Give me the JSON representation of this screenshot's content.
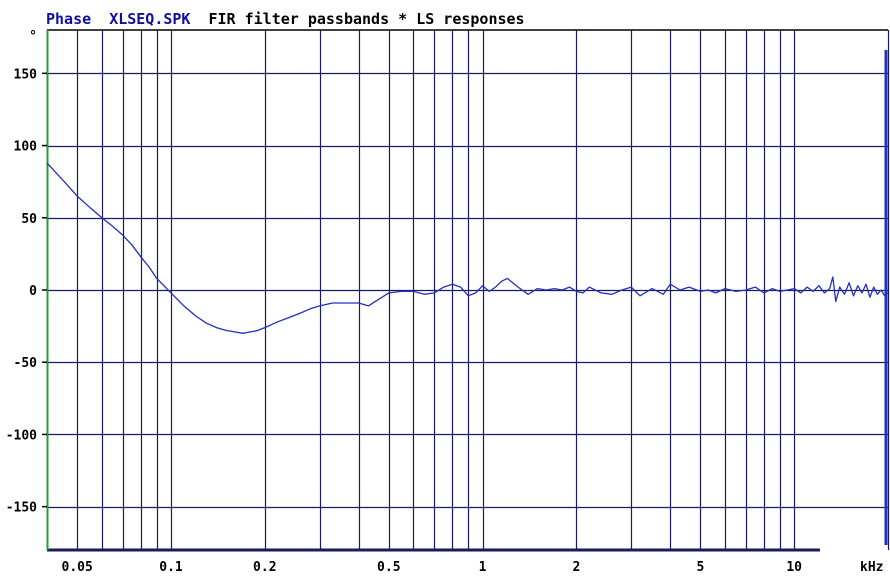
{
  "chart_data": {
    "type": "line",
    "title": {
      "prefix": "Phase",
      "file": "XLSEQ.SPK",
      "rest": "FIR filter passbands * LS responses"
    },
    "ylabel": "°",
    "xlabel": "kHz",
    "x_scale": "log",
    "xlim": [
      0.04,
      20
    ],
    "ylim": [
      -180,
      180
    ],
    "x_ticks": [
      {
        "value": 0.05,
        "label": "0.05"
      },
      {
        "value": 0.1,
        "label": "0.1"
      },
      {
        "value": 0.2,
        "label": "0.2"
      },
      {
        "value": 0.5,
        "label": "0.5"
      },
      {
        "value": 1,
        "label": "1"
      },
      {
        "value": 2,
        "label": "2"
      },
      {
        "value": 5,
        "label": "5"
      },
      {
        "value": 10,
        "label": "10"
      }
    ],
    "y_ticks": [
      {
        "value": 150,
        "label": "150"
      },
      {
        "value": 100,
        "label": "100"
      },
      {
        "value": 50,
        "label": "50"
      },
      {
        "value": 0,
        "label": "0"
      },
      {
        "value": -50,
        "label": "-50"
      },
      {
        "value": -100,
        "label": "-100"
      },
      {
        "value": -150,
        "label": "-150"
      }
    ],
    "grid": true,
    "colors": {
      "grid": "#1a1a60",
      "trace": "#2030c0",
      "title_accent": "#1010a0",
      "axis": "#000000",
      "left_axis": "#20a030"
    },
    "series": [
      {
        "x": [
          0.04,
          0.045,
          0.05,
          0.055,
          0.06,
          0.065,
          0.07,
          0.075,
          0.08,
          0.085,
          0.09,
          0.1,
          0.11,
          0.12,
          0.13,
          0.14,
          0.15,
          0.16,
          0.17,
          0.18,
          0.19,
          0.2,
          0.22,
          0.24,
          0.26,
          0.28,
          0.3,
          0.33,
          0.36,
          0.4,
          0.43,
          0.46,
          0.5,
          0.55,
          0.6,
          0.65,
          0.7,
          0.75,
          0.8,
          0.85,
          0.9,
          0.95,
          1.0,
          1.05,
          1.1,
          1.15,
          1.2,
          1.3,
          1.4,
          1.5,
          1.6,
          1.7,
          1.8,
          1.9,
          2.0,
          2.1,
          2.2,
          2.4,
          2.6,
          2.8,
          3.0,
          3.2,
          3.5,
          3.8,
          4.0,
          4.3,
          4.6,
          5.0,
          5.3,
          5.6,
          6.0,
          6.5,
          7.0,
          7.5,
          8.0,
          8.5,
          9.0,
          9.5,
          10.0,
          10.5,
          11.0,
          11.5,
          12.0,
          12.5,
          13.0,
          13.3,
          13.6,
          14.0,
          14.5,
          15.0,
          15.5,
          16.0,
          16.5,
          17.0,
          17.5,
          18.0,
          18.5,
          19.0,
          19.5,
          20.0
        ],
        "values": [
          88,
          76,
          65,
          57,
          50,
          44,
          38,
          31,
          23,
          16,
          8,
          -2,
          -11,
          -18,
          -23,
          -26,
          -28,
          -29,
          -30,
          -29,
          -28,
          -26,
          -22,
          -19,
          -16,
          -13,
          -11,
          -9,
          -9,
          -9,
          -11,
          -7,
          -2,
          -1,
          -1,
          -3,
          -2,
          2,
          4,
          2,
          -4,
          -2,
          3,
          -1,
          2,
          6,
          8,
          2,
          -3,
          1,
          0,
          1,
          0,
          2,
          -1,
          -2,
          2,
          -2,
          -3,
          0,
          2,
          -4,
          1,
          -3,
          4,
          0,
          2,
          -1,
          0,
          -2,
          1,
          -1,
          0,
          2,
          -2,
          1,
          -1,
          0,
          1,
          -2,
          2,
          -1,
          3,
          -2,
          1,
          9,
          -8,
          2,
          -3,
          5,
          -4,
          3,
          -2,
          4,
          -5,
          2,
          -3,
          0,
          -4,
          -2
        ]
      }
    ]
  }
}
